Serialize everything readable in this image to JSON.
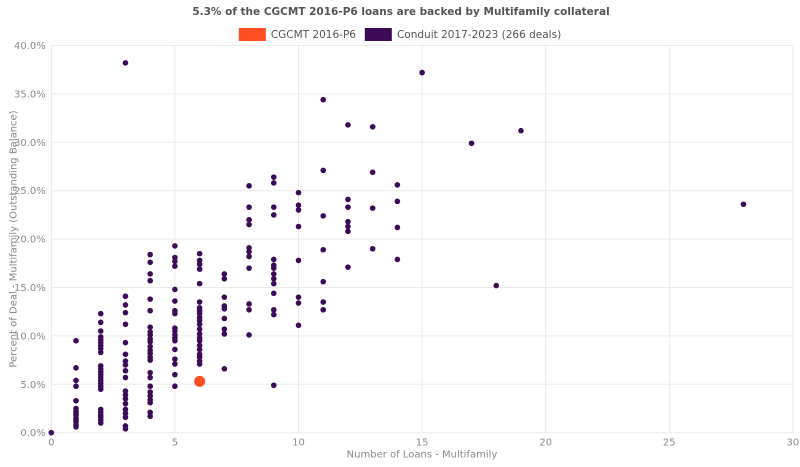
{
  "chart_data": {
    "type": "scatter",
    "title": "5.3% of the CGCMT 2016-P6 loans are backed by Multifamily collateral",
    "xlabel": "Number of Loans - Multifamily",
    "ylabel": "Percent of Deal - Multifamily (Outstanding Balance)",
    "xlim": [
      0,
      30
    ],
    "ylim": [
      0,
      40
    ],
    "xticks": [
      0,
      5,
      10,
      15,
      20,
      25,
      30
    ],
    "xtick_labels": [
      "0",
      "5",
      "10",
      "15",
      "20",
      "25",
      "30"
    ],
    "yticks": [
      0,
      5,
      10,
      15,
      20,
      25,
      30,
      35,
      40
    ],
    "ytick_labels": [
      "0.0%",
      "5.0%",
      "10.0%",
      "15.0%",
      "20.0%",
      "25.0%",
      "30.0%",
      "35.0%",
      "40.0%"
    ],
    "grid": true,
    "grid_color": "#ebebeb",
    "tick_color": "#8c8c8c",
    "legend_position": "top-center",
    "series": [
      {
        "key": "cgcmt",
        "name": "CGCMT 2016-P6",
        "color": "#ff4e21",
        "marker_size": 11,
        "points": [
          [
            6,
            5.3
          ]
        ]
      },
      {
        "key": "conduit",
        "name": "Conduit 2017-2023 (266 deals)",
        "color": "#3c0a57",
        "marker_size": 5.6,
        "points": [
          [
            0,
            0.0
          ],
          [
            1,
            9.5
          ],
          [
            1,
            6.7
          ],
          [
            1,
            5.4
          ],
          [
            1,
            4.8
          ],
          [
            1,
            3.3
          ],
          [
            1,
            2.5
          ],
          [
            1,
            2.2
          ],
          [
            1,
            2.0
          ],
          [
            1,
            1.8
          ],
          [
            1,
            1.5
          ],
          [
            1,
            1.3
          ],
          [
            1,
            1.1
          ],
          [
            1,
            0.8
          ],
          [
            1,
            0.6
          ],
          [
            2,
            12.3
          ],
          [
            2,
            11.4
          ],
          [
            2,
            10.5
          ],
          [
            2,
            9.9
          ],
          [
            2,
            9.6
          ],
          [
            2,
            9.3
          ],
          [
            2,
            9.0
          ],
          [
            2,
            8.7
          ],
          [
            2,
            8.3
          ],
          [
            2,
            6.9
          ],
          [
            2,
            6.6
          ],
          [
            2,
            6.3
          ],
          [
            2,
            6.0
          ],
          [
            2,
            5.7
          ],
          [
            2,
            5.4
          ],
          [
            2,
            5.1
          ],
          [
            2,
            4.8
          ],
          [
            2,
            4.5
          ],
          [
            2,
            2.4
          ],
          [
            2,
            2.1
          ],
          [
            2,
            1.8
          ],
          [
            2,
            1.6
          ],
          [
            2,
            1.3
          ],
          [
            2,
            1.0
          ],
          [
            3,
            38.2
          ],
          [
            3,
            14.1
          ],
          [
            3,
            13.2
          ],
          [
            3,
            12.4
          ],
          [
            3,
            11.2
          ],
          [
            3,
            9.3
          ],
          [
            3,
            8.1
          ],
          [
            3,
            7.4
          ],
          [
            3,
            7.0
          ],
          [
            3,
            6.4
          ],
          [
            3,
            5.7
          ],
          [
            3,
            4.3
          ],
          [
            3,
            3.9
          ],
          [
            3,
            3.5
          ],
          [
            3,
            3.0
          ],
          [
            3,
            2.4
          ],
          [
            3,
            2.0
          ],
          [
            3,
            1.6
          ],
          [
            3,
            0.7
          ],
          [
            3,
            0.4
          ],
          [
            4,
            18.4
          ],
          [
            4,
            17.6
          ],
          [
            4,
            16.4
          ],
          [
            4,
            15.7
          ],
          [
            4,
            13.8
          ],
          [
            4,
            12.6
          ],
          [
            4,
            10.9
          ],
          [
            4,
            10.4
          ],
          [
            4,
            10.1
          ],
          [
            4,
            9.7
          ],
          [
            4,
            9.4
          ],
          [
            4,
            8.9
          ],
          [
            4,
            8.5
          ],
          [
            4,
            8.2
          ],
          [
            4,
            7.8
          ],
          [
            4,
            7.5
          ],
          [
            4,
            6.2
          ],
          [
            4,
            5.7
          ],
          [
            4,
            4.8
          ],
          [
            4,
            4.2
          ],
          [
            4,
            3.8
          ],
          [
            4,
            3.4
          ],
          [
            4,
            3.1
          ],
          [
            4,
            2.1
          ],
          [
            4,
            1.7
          ],
          [
            5,
            19.3
          ],
          [
            5,
            18.1
          ],
          [
            5,
            17.7
          ],
          [
            5,
            17.2
          ],
          [
            5,
            14.8
          ],
          [
            5,
            13.6
          ],
          [
            5,
            12.6
          ],
          [
            5,
            12.3
          ],
          [
            5,
            10.8
          ],
          [
            5,
            10.5
          ],
          [
            5,
            10.1
          ],
          [
            5,
            9.8
          ],
          [
            5,
            9.5
          ],
          [
            5,
            8.6
          ],
          [
            5,
            7.6
          ],
          [
            5,
            7.1
          ],
          [
            5,
            6.0
          ],
          [
            5,
            4.8
          ],
          [
            6,
            18.5
          ],
          [
            6,
            17.8
          ],
          [
            6,
            17.4
          ],
          [
            6,
            16.9
          ],
          [
            6,
            15.4
          ],
          [
            6,
            13.5
          ],
          [
            6,
            12.9
          ],
          [
            6,
            12.6
          ],
          [
            6,
            12.3
          ],
          [
            6,
            11.9
          ],
          [
            6,
            11.6
          ],
          [
            6,
            11.2
          ],
          [
            6,
            10.7
          ],
          [
            6,
            10.2
          ],
          [
            6,
            9.8
          ],
          [
            6,
            9.5
          ],
          [
            6,
            9.0
          ],
          [
            6,
            8.6
          ],
          [
            6,
            8.1
          ],
          [
            6,
            7.8
          ],
          [
            6,
            7.4
          ],
          [
            6,
            7.1
          ],
          [
            7,
            16.4
          ],
          [
            7,
            15.9
          ],
          [
            7,
            14.0
          ],
          [
            7,
            13.1
          ],
          [
            7,
            12.8
          ],
          [
            7,
            11.8
          ],
          [
            7,
            10.7
          ],
          [
            7,
            10.2
          ],
          [
            7,
            6.6
          ],
          [
            8,
            25.5
          ],
          [
            8,
            23.3
          ],
          [
            8,
            22.0
          ],
          [
            8,
            21.5
          ],
          [
            8,
            19.1
          ],
          [
            8,
            18.7
          ],
          [
            8,
            18.2
          ],
          [
            8,
            17.0
          ],
          [
            8,
            13.3
          ],
          [
            8,
            12.7
          ],
          [
            8,
            10.1
          ],
          [
            9,
            26.4
          ],
          [
            9,
            25.8
          ],
          [
            9,
            23.3
          ],
          [
            9,
            22.5
          ],
          [
            9,
            17.9
          ],
          [
            9,
            17.3
          ],
          [
            9,
            17.0
          ],
          [
            9,
            16.4
          ],
          [
            9,
            15.9
          ],
          [
            9,
            15.4
          ],
          [
            9,
            14.4
          ],
          [
            9,
            12.7
          ],
          [
            9,
            12.2
          ],
          [
            9,
            4.9
          ],
          [
            10,
            24.8
          ],
          [
            10,
            23.5
          ],
          [
            10,
            23.0
          ],
          [
            10,
            21.3
          ],
          [
            10,
            17.8
          ],
          [
            10,
            14.0
          ],
          [
            10,
            13.4
          ],
          [
            10,
            11.1
          ],
          [
            11,
            34.4
          ],
          [
            11,
            27.1
          ],
          [
            11,
            22.4
          ],
          [
            11,
            18.9
          ],
          [
            11,
            15.6
          ],
          [
            11,
            13.5
          ],
          [
            11,
            12.7
          ],
          [
            12,
            31.8
          ],
          [
            12,
            24.1
          ],
          [
            12,
            23.3
          ],
          [
            12,
            21.8
          ],
          [
            12,
            21.3
          ],
          [
            12,
            20.8
          ],
          [
            12,
            17.1
          ],
          [
            13,
            31.6
          ],
          [
            13,
            26.9
          ],
          [
            13,
            23.2
          ],
          [
            13,
            19.0
          ],
          [
            14,
            25.6
          ],
          [
            14,
            23.9
          ],
          [
            14,
            21.2
          ],
          [
            14,
            17.9
          ],
          [
            15,
            37.2
          ],
          [
            17,
            29.9
          ],
          [
            18,
            15.2
          ],
          [
            19,
            31.2
          ],
          [
            28,
            23.6
          ]
        ]
      }
    ]
  }
}
